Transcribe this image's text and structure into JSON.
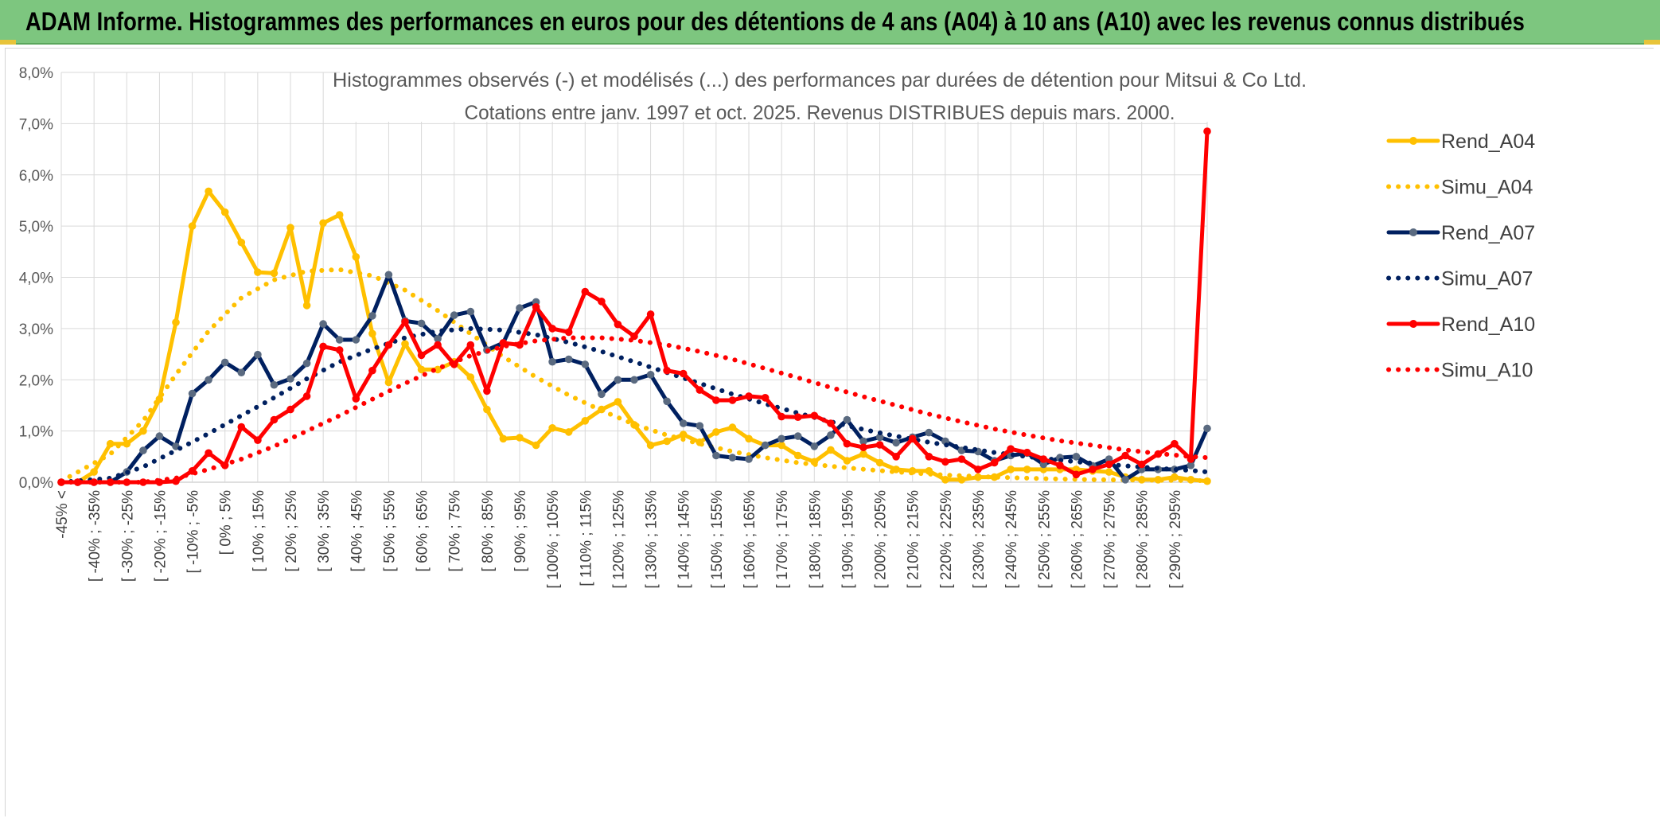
{
  "header": {
    "banner_title": "ADAM Informe. Histogrammes des performances en euros pour des détentions de 4 ans (A04) à 10 ans (A10) avec les revenus connus distribués"
  },
  "colors": {
    "banner_bg": "#7dc67f",
    "A04": "#ffc000",
    "A07": "#002060",
    "A07_marker": "#5a6a80",
    "A10": "#ff0000",
    "grid": "#d9d9d9"
  },
  "chart_data": {
    "type": "line",
    "title_lines": [
      "Histogrammes observés (-) et modélisés (...) des performances par durées de détention pour Mitsui & Co Ltd.",
      "Cotations entre janv. 1997 et oct. 2025. Revenus DISTRIBUES depuis mars. 2000."
    ],
    "xlabel": "",
    "ylabel": "",
    "ylim": [
      0,
      8
    ],
    "y_ticks": [
      "0,0%",
      "1,0%",
      "2,0%",
      "3,0%",
      "4,0%",
      "5,0%",
      "6,0%",
      "7,0%",
      "8,0%"
    ],
    "x_tick_labels": [
      "-45% <",
      "[ -40% ; -35%",
      "[ -30% ; -25%",
      "[ -20% ; -15%",
      "[ -10% ; -5%",
      "[ 0% ; 5%",
      "[ 10% ; 15%",
      "[ 20% ; 25%",
      "[ 30% ; 35%",
      "[ 40% ; 45%",
      "[ 50% ; 55%",
      "[ 60% ; 65%",
      "[ 70% ; 75%",
      "[ 80% ; 85%",
      "[ 90% ; 95%",
      "[ 100% ; 105%",
      "[ 110% ; 115%",
      "[ 120% ; 125%",
      "[ 130% ; 135%",
      "[ 140% ; 145%",
      "[ 150% ; 155%",
      "[ 160% ; 165%",
      "[ 170% ; 175%",
      "[ 180% ; 185%",
      "[ 190% ; 195%",
      "[ 200% ; 205%",
      "[ 210% ; 215%",
      "[ 220% ; 225%",
      "[ 230% ; 235%",
      "[ 240% ; 245%",
      "[ 250% ; 255%",
      "[ 260% ; 265%",
      "[ 270% ; 275%",
      "[ 280% ; 285%",
      "[ 290% ; 295%"
    ],
    "n_categories": 71,
    "grid": true,
    "legend_position": "right",
    "series": [
      {
        "name": "Rend_A04",
        "style": "solid",
        "markers": true,
        "color": "#ffc000",
        "values": [
          0,
          0,
          0.2,
          0.75,
          0.75,
          1.0,
          1.62,
          3.12,
          5.0,
          5.68,
          5.27,
          4.68,
          4.1,
          4.08,
          4.97,
          3.45,
          5.06,
          5.22,
          4.4,
          2.9,
          1.95,
          2.7,
          2.2,
          2.2,
          2.35,
          2.05,
          1.42,
          0.85,
          0.87,
          0.72,
          1.06,
          0.98,
          1.2,
          1.42,
          1.57,
          1.12,
          0.72,
          0.8,
          0.93,
          0.78,
          0.98,
          1.07,
          0.85,
          0.72,
          0.72,
          0.52,
          0.4,
          0.63,
          0.42,
          0.55,
          0.38,
          0.25,
          0.22,
          0.22,
          0.05,
          0.05,
          0.1,
          0.1,
          0.25,
          0.25,
          0.25,
          0.25,
          0.25,
          0.22,
          0.2,
          0.1,
          0.05,
          0.05,
          0.1,
          0.05,
          0.02
        ]
      },
      {
        "name": "Simu_A04",
        "style": "dotted",
        "markers": false,
        "color": "#ffc000",
        "points": [
          [
            0,
            0.02
          ],
          [
            3,
            0.55
          ],
          [
            5,
            1.2
          ],
          [
            7,
            2.1
          ],
          [
            9,
            2.95
          ],
          [
            11,
            3.6
          ],
          [
            13,
            3.95
          ],
          [
            15,
            4.12
          ],
          [
            17,
            4.15
          ],
          [
            19,
            4.03
          ],
          [
            21,
            3.75
          ],
          [
            23,
            3.35
          ],
          [
            25,
            2.9
          ],
          [
            27,
            2.45
          ],
          [
            29,
            2.05
          ],
          [
            31,
            1.7
          ],
          [
            33,
            1.4
          ],
          [
            35,
            1.13
          ],
          [
            37,
            0.92
          ],
          [
            39,
            0.75
          ],
          [
            41,
            0.6
          ],
          [
            43,
            0.48
          ],
          [
            45,
            0.38
          ],
          [
            48,
            0.28
          ],
          [
            51,
            0.2
          ],
          [
            54,
            0.14
          ],
          [
            57,
            0.1
          ],
          [
            60,
            0.07
          ],
          [
            63,
            0.05
          ],
          [
            66,
            0.04
          ],
          [
            70,
            0.03
          ]
        ]
      },
      {
        "name": "Rend_A07",
        "style": "solid",
        "markers": true,
        "color": "#002060",
        "values": [
          0,
          0,
          0,
          0,
          0.2,
          0.62,
          0.9,
          0.7,
          1.73,
          2.0,
          2.34,
          2.14,
          2.49,
          1.9,
          2.02,
          2.32,
          3.09,
          2.78,
          2.78,
          3.25,
          4.05,
          3.15,
          3.1,
          2.8,
          3.26,
          3.33,
          2.58,
          2.72,
          3.4,
          3.52,
          2.35,
          2.4,
          2.3,
          1.72,
          2.0,
          2.0,
          2.1,
          1.58,
          1.15,
          1.1,
          0.52,
          0.48,
          0.45,
          0.72,
          0.85,
          0.9,
          0.7,
          0.92,
          1.22,
          0.8,
          0.88,
          0.77,
          0.88,
          0.97,
          0.8,
          0.62,
          0.6,
          0.42,
          0.52,
          0.57,
          0.35,
          0.48,
          0.5,
          0.32,
          0.45,
          0.05,
          0.25,
          0.25,
          0.25,
          0.33,
          1.05
        ]
      },
      {
        "name": "Simu_A07",
        "style": "dotted",
        "markers": false,
        "color": "#002060",
        "points": [
          [
            0,
            0
          ],
          [
            3,
            0.08
          ],
          [
            5,
            0.3
          ],
          [
            7,
            0.62
          ],
          [
            9,
            0.95
          ],
          [
            11,
            1.3
          ],
          [
            13,
            1.65
          ],
          [
            15,
            2.02
          ],
          [
            17,
            2.35
          ],
          [
            19,
            2.6
          ],
          [
            21,
            2.82
          ],
          [
            23,
            2.95
          ],
          [
            25,
            3.0
          ],
          [
            27,
            2.97
          ],
          [
            29,
            2.88
          ],
          [
            31,
            2.73
          ],
          [
            33,
            2.55
          ],
          [
            35,
            2.35
          ],
          [
            37,
            2.14
          ],
          [
            39,
            1.93
          ],
          [
            41,
            1.72
          ],
          [
            43,
            1.53
          ],
          [
            45,
            1.35
          ],
          [
            47,
            1.18
          ],
          [
            49,
            1.03
          ],
          [
            51,
            0.9
          ],
          [
            53,
            0.78
          ],
          [
            55,
            0.68
          ],
          [
            57,
            0.58
          ],
          [
            59,
            0.5
          ],
          [
            61,
            0.43
          ],
          [
            63,
            0.37
          ],
          [
            65,
            0.32
          ],
          [
            67,
            0.27
          ],
          [
            69,
            0.23
          ],
          [
            70,
            0.2
          ]
        ]
      },
      {
        "name": "Rend_A10",
        "style": "solid",
        "markers": true,
        "color": "#ff0000",
        "values": [
          0,
          0,
          0,
          0,
          0,
          0,
          0,
          0.02,
          0.22,
          0.57,
          0.33,
          1.08,
          0.82,
          1.22,
          1.42,
          1.68,
          2.65,
          2.58,
          1.63,
          2.18,
          2.68,
          3.13,
          2.48,
          2.68,
          2.3,
          2.68,
          1.78,
          2.72,
          2.68,
          3.42,
          3.0,
          2.93,
          3.72,
          3.53,
          3.08,
          2.85,
          3.28,
          2.18,
          2.12,
          1.8,
          1.6,
          1.6,
          1.68,
          1.65,
          1.28,
          1.27,
          1.3,
          1.15,
          0.75,
          0.68,
          0.73,
          0.5,
          0.85,
          0.5,
          0.4,
          0.45,
          0.25,
          0.38,
          0.65,
          0.58,
          0.45,
          0.33,
          0.15,
          0.25,
          0.35,
          0.52,
          0.35,
          0.55,
          0.75,
          0.45,
          6.85
        ]
      },
      {
        "name": "Simu_A10",
        "style": "dotted",
        "markers": false,
        "color": "#ff0000",
        "points": [
          [
            0,
            0
          ],
          [
            5,
            0
          ],
          [
            7,
            0.08
          ],
          [
            9,
            0.25
          ],
          [
            11,
            0.45
          ],
          [
            13,
            0.7
          ],
          [
            15,
            1.0
          ],
          [
            17,
            1.3
          ],
          [
            19,
            1.62
          ],
          [
            21,
            1.93
          ],
          [
            23,
            2.22
          ],
          [
            25,
            2.47
          ],
          [
            27,
            2.65
          ],
          [
            29,
            2.76
          ],
          [
            31,
            2.82
          ],
          [
            33,
            2.82
          ],
          [
            35,
            2.77
          ],
          [
            37,
            2.68
          ],
          [
            39,
            2.55
          ],
          [
            41,
            2.4
          ],
          [
            43,
            2.22
          ],
          [
            45,
            2.04
          ],
          [
            47,
            1.85
          ],
          [
            49,
            1.67
          ],
          [
            51,
            1.5
          ],
          [
            53,
            1.33
          ],
          [
            55,
            1.18
          ],
          [
            57,
            1.04
          ],
          [
            59,
            0.92
          ],
          [
            61,
            0.81
          ],
          [
            63,
            0.72
          ],
          [
            65,
            0.63
          ],
          [
            67,
            0.56
          ],
          [
            69,
            0.5
          ],
          [
            70,
            0.48
          ]
        ]
      }
    ]
  }
}
